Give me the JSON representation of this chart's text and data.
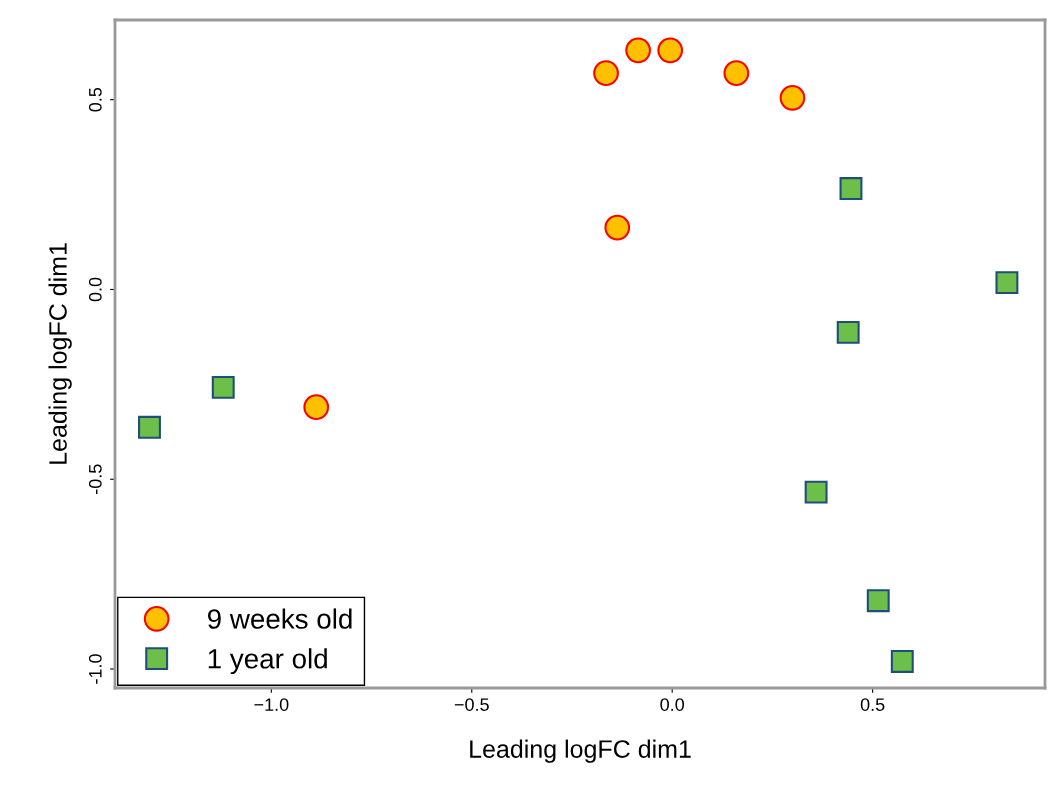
{
  "chart_data": {
    "type": "scatter",
    "xlabel": "Leading logFC dim1",
    "ylabel": "Leading logFC dim1",
    "xlim": [
      -1.39,
      0.93
    ],
    "ylim": [
      -1.05,
      0.71
    ],
    "xticks": [
      {
        "value": -1.0,
        "label": "−1.0"
      },
      {
        "value": -0.5,
        "label": "−0.5"
      },
      {
        "value": 0.0,
        "label": "0.0"
      },
      {
        "value": 0.5,
        "label": "0.5"
      }
    ],
    "yticks": [
      {
        "value": -1.0,
        "label": "-1.0"
      },
      {
        "value": -0.5,
        "label": "-0.5"
      },
      {
        "value": 0.0,
        "label": "0.0"
      },
      {
        "value": 0.5,
        "label": "0.5"
      }
    ],
    "grid": false,
    "legend": "bottom left",
    "series": [
      {
        "name": "9 weeks old",
        "color": "#ffc000",
        "marker": "circle",
        "x": [
          -0.165,
          -0.085,
          -0.005,
          0.16,
          0.3,
          -0.137,
          -0.888
        ],
        "values": [
          0.57,
          0.63,
          0.63,
          0.57,
          0.505,
          0.163,
          -0.31
        ]
      },
      {
        "name": "1 year old",
        "color": "#6cc04a",
        "marker": "square",
        "x": [
          0.446,
          0.835,
          0.439,
          0.359,
          0.514,
          0.574,
          -1.12,
          -1.304
        ],
        "values": [
          0.266,
          0.018,
          -0.113,
          -0.534,
          -0.82,
          -0.98,
          -0.258,
          -0.363
        ]
      }
    ]
  }
}
